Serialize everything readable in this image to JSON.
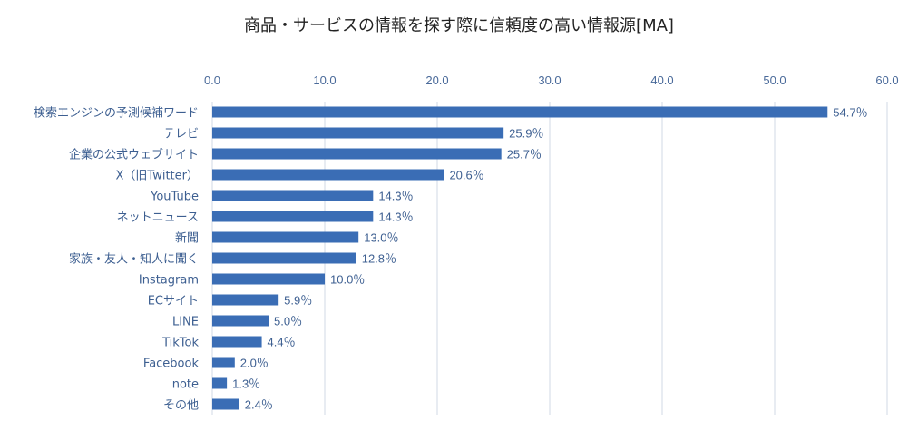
{
  "chart_data": {
    "type": "bar",
    "orientation": "horizontal",
    "title": "商品・サービスの情報を探す際に信頼度の高い情報源[MA]",
    "categories": [
      "検索エンジンの予測候補ワード",
      "テレビ",
      "企業の公式ウェブサイト",
      "X（旧Twitter）",
      "YouTube",
      "ネットニュース",
      "新聞",
      "家族・友人・知人に聞く",
      "Instagram",
      "ECサイト",
      "LINE",
      "TikTok",
      "Facebook",
      "note",
      "その他"
    ],
    "values": [
      54.7,
      25.9,
      25.7,
      20.6,
      14.3,
      14.3,
      13.0,
      12.8,
      10.0,
      5.9,
      5.0,
      4.4,
      2.0,
      1.3,
      2.4
    ],
    "data_labels": [
      "54.7％",
      "25.9％",
      "25.7％",
      "20.6％",
      "14.3％",
      "14.3％",
      "13.0％",
      "12.8％",
      "10.0％",
      "5.9％",
      "5.0％",
      "4.4％",
      "2.0％",
      "1.3％",
      "2.4％"
    ],
    "xlim": [
      0,
      60
    ],
    "ticks": [
      0,
      10,
      20,
      30,
      40,
      50,
      60
    ],
    "tick_labels": [
      "0.0",
      "10.0",
      "20.0",
      "30.0",
      "40.0",
      "50.0",
      "60.0"
    ],
    "xlabel": "",
    "ylabel": "",
    "grid": true,
    "legend": "none",
    "bar_color": "#3a6db5",
    "grid_color": "#d0d8e4"
  }
}
